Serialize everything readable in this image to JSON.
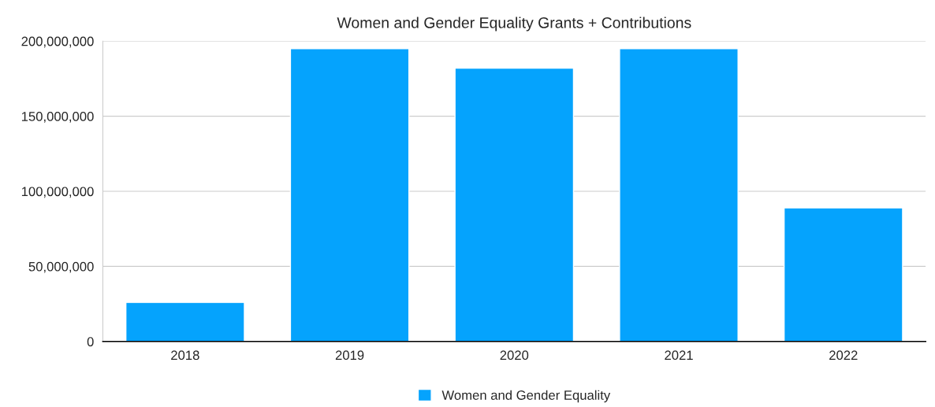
{
  "chart_data": {
    "type": "bar",
    "title": "Women and Gender Equality Grants + Contributions",
    "categories": [
      "2018",
      "2019",
      "2020",
      "2021",
      "2022"
    ],
    "series": [
      {
        "name": "Women and Gender Equality",
        "color": "#05a3fd",
        "values": [
          26000000,
          195000000,
          182000000,
          195000000,
          89000000
        ]
      }
    ],
    "ylim": [
      0,
      200000000
    ],
    "yticks": [
      {
        "value": 0,
        "label": "0"
      },
      {
        "value": 50000000,
        "label": "50,000,000"
      },
      {
        "value": 100000000,
        "label": "100,000,000"
      },
      {
        "value": 150000000,
        "label": "150,000,000"
      },
      {
        "value": 200000000,
        "label": "200,000,000"
      }
    ],
    "grid": "y",
    "legend": "bottom"
  }
}
